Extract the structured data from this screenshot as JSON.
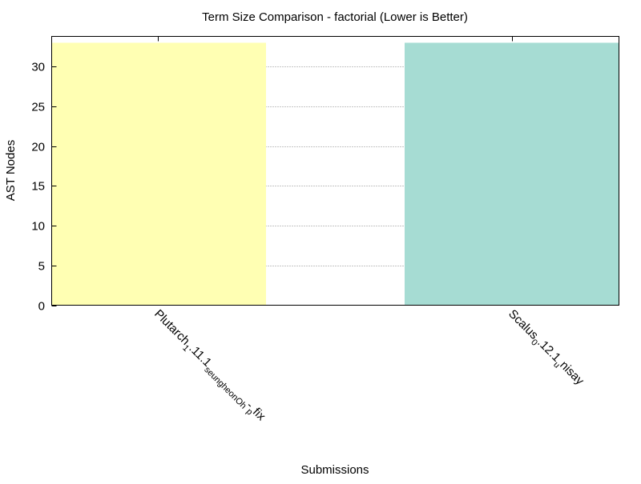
{
  "chart_data": {
    "type": "bar",
    "title": "Term Size Comparison - factorial (Lower is Better)",
    "xlabel": "Submissions",
    "ylabel": "AST Nodes",
    "ylim": [
      0,
      33.8
    ],
    "yticks": [
      0,
      5,
      10,
      15,
      20,
      25,
      30
    ],
    "grid": true,
    "categories": [
      {
        "main": "Plutarch",
        "parts": [
          [
            "sub",
            "1"
          ],
          [
            "base",
            ".11.1"
          ],
          [
            "sub",
            "seungheonOh"
          ],
          [
            "base",
            "-"
          ],
          [
            "sub",
            "p"
          ],
          [
            "base",
            "fix"
          ]
        ]
      },
      {
        "main": "Scalus",
        "parts": [
          [
            "sub",
            "0"
          ],
          [
            "base",
            ".12.1"
          ],
          [
            "sub",
            "u"
          ],
          [
            "base",
            "nisay"
          ]
        ]
      }
    ],
    "values": [
      33,
      33
    ],
    "colors": [
      "#ffffb3",
      "#a6dcd3"
    ]
  }
}
